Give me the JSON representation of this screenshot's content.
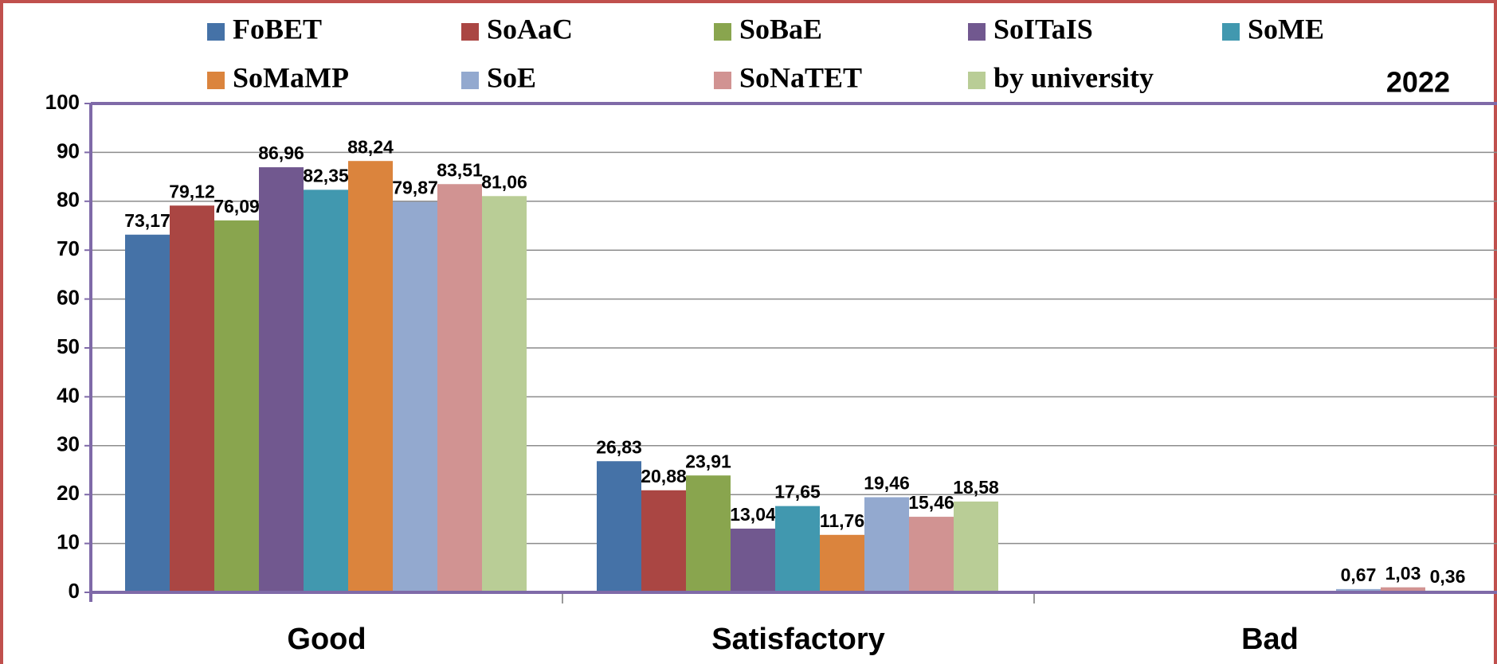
{
  "chart_data": {
    "type": "bar",
    "annotation": "2022",
    "categories": [
      "Good",
      "Satisfactory",
      "Bad"
    ],
    "series": [
      {
        "name": "FoBET",
        "color": "#4572a7",
        "values": [
          73.17,
          26.83,
          0
        ],
        "value_labels": [
          "73,17",
          "26,83",
          null
        ]
      },
      {
        "name": "SoAaC",
        "color": "#aa4643",
        "values": [
          79.12,
          20.88,
          0
        ],
        "value_labels": [
          "79,12",
          "20,88",
          null
        ]
      },
      {
        "name": "SoBaE",
        "color": "#89a54e",
        "values": [
          76.09,
          23.91,
          0
        ],
        "value_labels": [
          "76,09",
          "23,91",
          null
        ]
      },
      {
        "name": "SoITaIS",
        "color": "#71588f",
        "values": [
          86.96,
          13.04,
          0
        ],
        "value_labels": [
          "86,96",
          "13,04",
          null
        ]
      },
      {
        "name": "SoME",
        "color": "#4198af",
        "values": [
          82.35,
          17.65,
          0
        ],
        "value_labels": [
          "82,35",
          "17,65",
          null
        ]
      },
      {
        "name": "SoMaMP",
        "color": "#db843d",
        "values": [
          88.24,
          11.76,
          0
        ],
        "value_labels": [
          "88,24",
          "11,76",
          null
        ]
      },
      {
        "name": "SoE",
        "color": "#93a9cf",
        "values": [
          79.87,
          19.46,
          0.67
        ],
        "value_labels": [
          "79,87",
          "19,46",
          "0,67"
        ]
      },
      {
        "name": "SoNaTET",
        "color": "#d19392",
        "values": [
          83.51,
          15.46,
          1.03
        ],
        "value_labels": [
          "83,51",
          "15,46",
          "1,03"
        ]
      },
      {
        "name": "by university",
        "color": "#b9cd96",
        "values": [
          81.06,
          18.58,
          0.36
        ],
        "value_labels": [
          "81,06",
          "18,58",
          "0,36"
        ]
      }
    ],
    "ylim": [
      0,
      100
    ],
    "yticks": [
      0,
      10,
      20,
      30,
      40,
      50,
      60,
      70,
      80,
      90,
      100
    ],
    "grid": true
  }
}
